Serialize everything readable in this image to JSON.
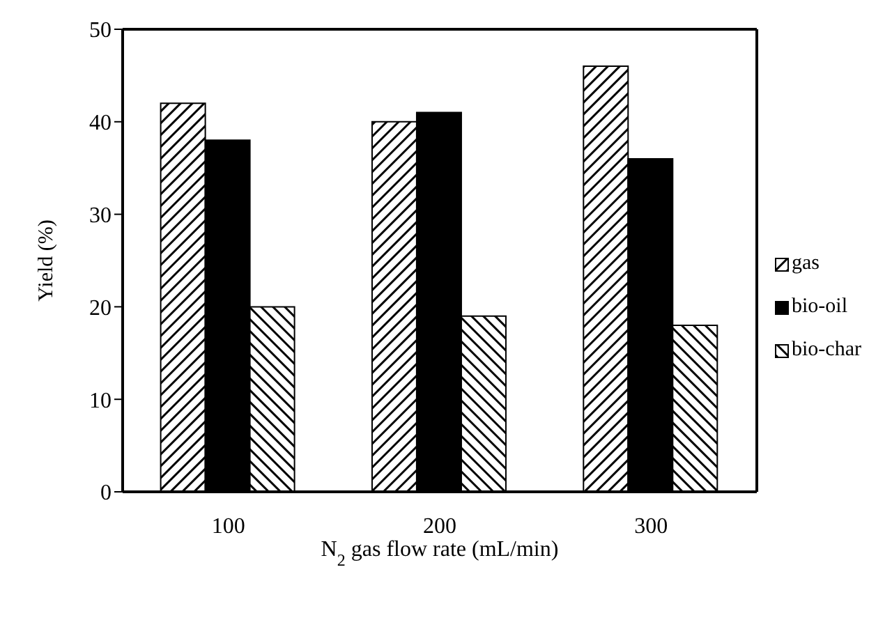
{
  "chart_data": {
    "type": "bar",
    "xlabel": "N$_{2}$ gas flow  rate (mL/min)",
    "ylabel": "Yield  (%)",
    "categories": [
      "100",
      "200",
      "300"
    ],
    "series": [
      {
        "name": "gas",
        "color": "#000000",
        "values": [
          42,
          40,
          46
        ]
      },
      {
        "name": "bio-oil",
        "color": "#000000",
        "values": [
          38,
          41,
          36
        ]
      },
      {
        "name": "bio-char",
        "color": "#000000",
        "values": [
          20,
          19,
          18
        ]
      }
    ],
    "ylim": [
      0,
      50
    ],
    "yticks": [
      0,
      10,
      20,
      30,
      40,
      50
    ],
    "legend": "right"
  }
}
